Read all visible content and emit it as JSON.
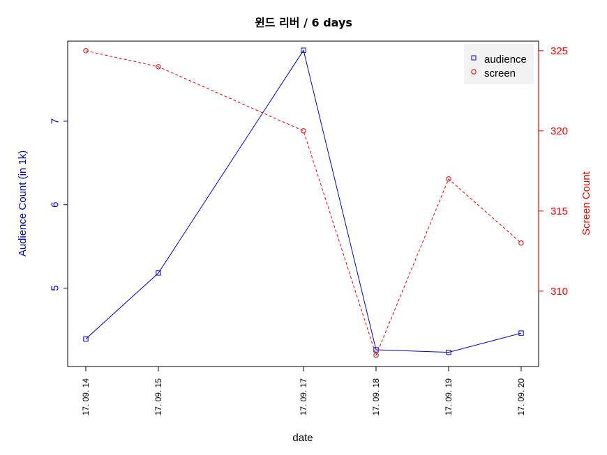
{
  "chart_data": {
    "type": "line",
    "title": "윈드 리버 / 6 days",
    "xlabel": "date",
    "ylabel_left": "Audience Count (in 1k)",
    "ylabel_right": "Screen Count",
    "x": [
      "17. 09. 14",
      "17. 09. 15",
      "17. 09. 17",
      "17. 09. 18",
      "17. 09. 19",
      "17. 09. 20"
    ],
    "x_day_index": [
      14,
      15,
      17,
      18,
      19,
      20
    ],
    "series": [
      {
        "name": "audience",
        "axis": "left",
        "color": "#0000cc",
        "marker": "square",
        "line_style": "solid",
        "values": [
          4.39,
          5.18,
          7.85,
          4.26,
          4.23,
          4.46
        ]
      },
      {
        "name": "screen",
        "axis": "right",
        "color": "#ee0000",
        "marker": "circle",
        "line_style": "dashed",
        "values": [
          325,
          324,
          320,
          306,
          317,
          313
        ]
      }
    ],
    "ylim_left": [
      4.06,
      7.96
    ],
    "yticks_left": [
      5,
      6,
      7
    ],
    "ylim_right": [
      305.3,
      325.6
    ],
    "yticks_right": [
      310,
      315,
      320,
      325
    ],
    "legend_position": "top-right",
    "grid": false
  }
}
